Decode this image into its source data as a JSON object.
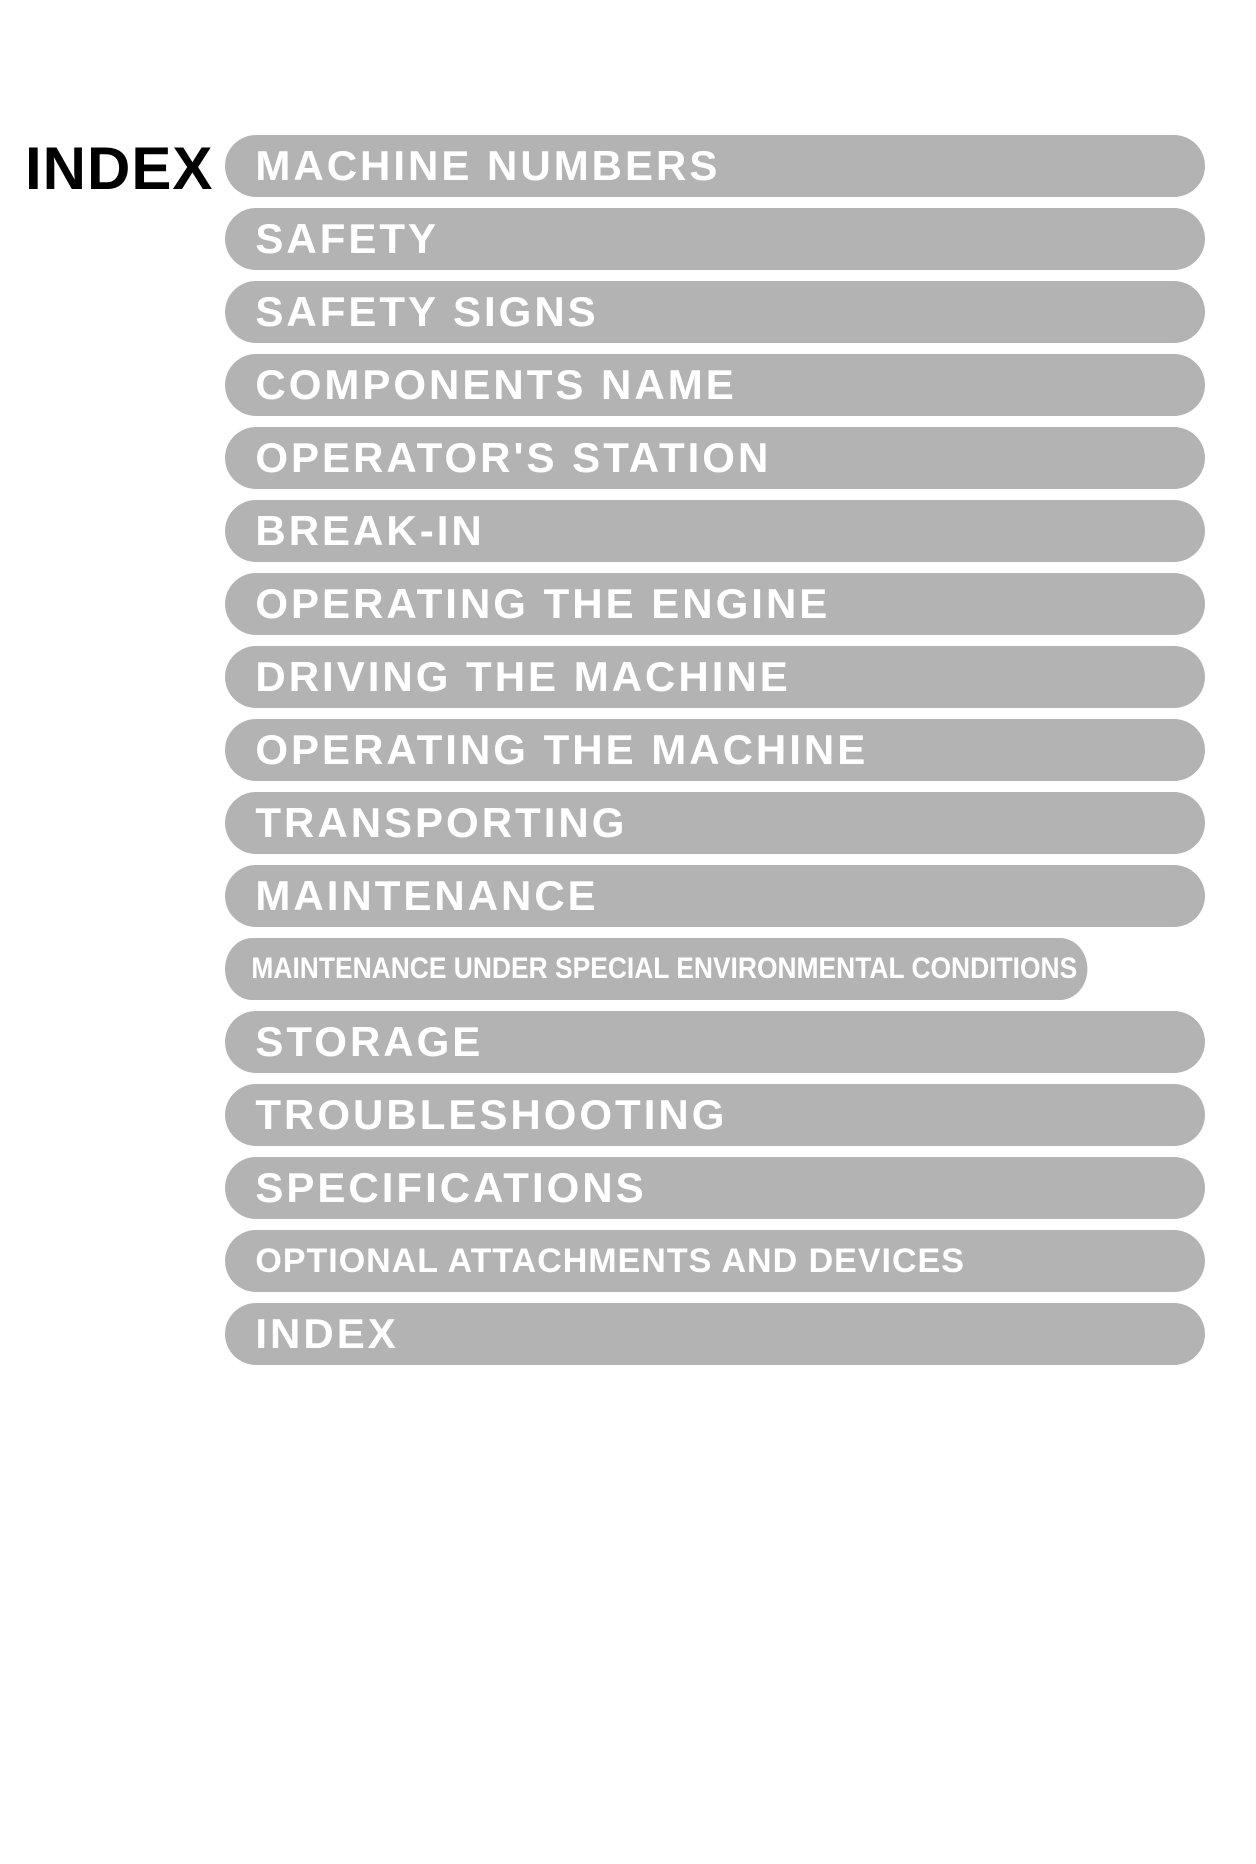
{
  "title": "INDEX",
  "pill_bg": "#b3b3b3",
  "pill_text_color": "#ffffff",
  "items": [
    {
      "label": "MACHINE NUMBERS",
      "size": "normal"
    },
    {
      "label": "SAFETY",
      "size": "normal"
    },
    {
      "label": "SAFETY SIGNS",
      "size": "normal"
    },
    {
      "label": "COMPONENTS NAME",
      "size": "normal"
    },
    {
      "label": "OPERATOR'S STATION",
      "size": "normal"
    },
    {
      "label": "BREAK-IN",
      "size": "normal"
    },
    {
      "label": "OPERATING THE ENGINE",
      "size": "normal"
    },
    {
      "label": "DRIVING THE MACHINE",
      "size": "normal"
    },
    {
      "label": "OPERATING THE MACHINE",
      "size": "normal"
    },
    {
      "label": "TRANSPORTING",
      "size": "normal"
    },
    {
      "label": "MAINTENANCE",
      "size": "normal"
    },
    {
      "label": "MAINTENANCE UNDER SPECIAL ENVIRONMENTAL CONDITIONS",
      "size": "xsmall"
    },
    {
      "label": "STORAGE",
      "size": "normal"
    },
    {
      "label": "TROUBLESHOOTING",
      "size": "normal"
    },
    {
      "label": "SPECIFICATIONS",
      "size": "normal"
    },
    {
      "label": "OPTIONAL ATTACHMENTS AND DEVICES",
      "size": "small"
    },
    {
      "label": "INDEX",
      "size": "normal"
    }
  ]
}
